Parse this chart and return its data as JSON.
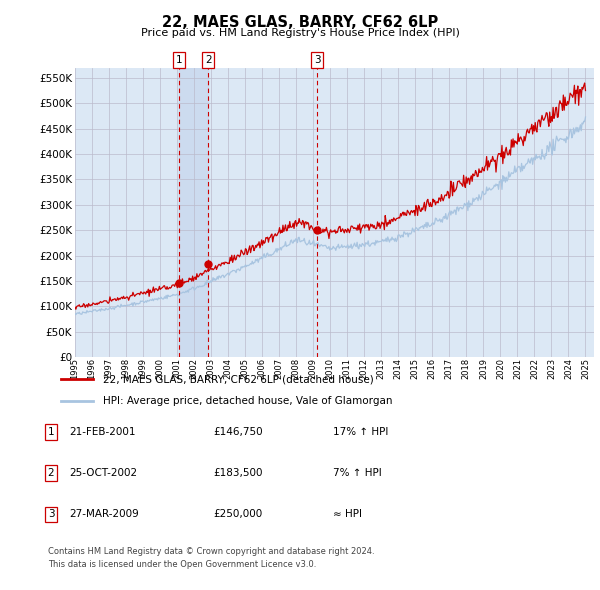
{
  "title": "22, MAES GLAS, BARRY, CF62 6LP",
  "subtitle": "Price paid vs. HM Land Registry's House Price Index (HPI)",
  "ylim": [
    0,
    570000
  ],
  "xlim_start": 1995.0,
  "xlim_end": 2025.5,
  "hpi_color": "#a8c4e0",
  "price_color": "#cc0000",
  "vline_color": "#cc0000",
  "bg_color": "#dce8f5",
  "shade_color": "#c8d8ee",
  "transactions": [
    {
      "label": "1",
      "date": "21-FEB-2001",
      "year": 2001.13,
      "price": 146750,
      "note": "17% ↑ HPI"
    },
    {
      "label": "2",
      "date": "25-OCT-2002",
      "year": 2002.82,
      "price": 183500,
      "note": "7% ↑ HPI"
    },
    {
      "label": "3",
      "date": "27-MAR-2009",
      "year": 2009.23,
      "price": 250000,
      "note": "≈ HPI"
    }
  ],
  "legend_line1": "22, MAES GLAS, BARRY, CF62 6LP (detached house)",
  "legend_line2": "HPI: Average price, detached house, Vale of Glamorgan",
  "footnote1": "Contains HM Land Registry data © Crown copyright and database right 2024.",
  "footnote2": "This data is licensed under the Open Government Licence v3.0.",
  "table_rows": [
    [
      "1",
      "21-FEB-2001",
      "£146,750",
      "17% ↑ HPI"
    ],
    [
      "2",
      "25-OCT-2002",
      "£183,500",
      "7% ↑ HPI"
    ],
    [
      "3",
      "27-MAR-2009",
      "£250,000",
      "≈ HPI"
    ]
  ]
}
